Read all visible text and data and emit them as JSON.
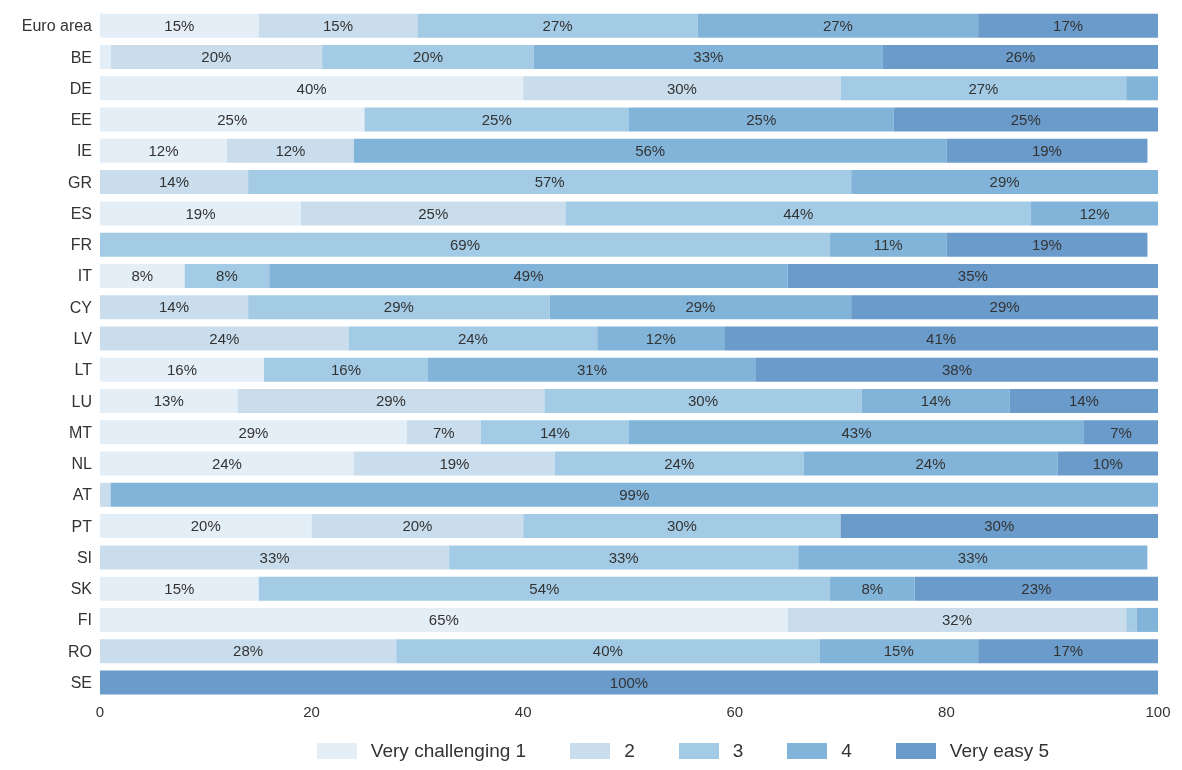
{
  "chart_data": {
    "type": "bar",
    "orientation": "horizontal",
    "stacked": true,
    "categories": [
      "Euro area",
      "BE",
      "DE",
      "EE",
      "IE",
      "GR",
      "ES",
      "FR",
      "IT",
      "CY",
      "LV",
      "LT",
      "LU",
      "MT",
      "NL",
      "AT",
      "PT",
      "SI",
      "SK",
      "FI",
      "RO",
      "SE"
    ],
    "series": [
      {
        "name": "Very challenging 1",
        "color": "#e4eef7",
        "values": [
          15,
          1,
          40,
          25,
          12,
          0,
          19,
          0,
          8,
          0,
          0,
          15.5,
          13,
          29,
          24,
          0,
          20,
          0,
          15,
          65,
          0,
          0
        ],
        "value_labels": [
          "15%",
          null,
          "40%",
          "25%",
          "12%",
          null,
          "19%",
          null,
          "8%",
          null,
          null,
          "16%",
          "13%",
          "29%",
          "24%",
          null,
          "20%",
          null,
          "15%",
          "65%",
          null,
          null
        ]
      },
      {
        "name": "2",
        "color": "#c9dded",
        "values": [
          15,
          20,
          30,
          0,
          12,
          14,
          25,
          0,
          0,
          14,
          23.5,
          0,
          29,
          7,
          19,
          1,
          20,
          33,
          0,
          32,
          28,
          0
        ],
        "value_labels": [
          "15%",
          "20%",
          "30%",
          null,
          "12%",
          "14%",
          "25%",
          null,
          null,
          "14%",
          "24%",
          null,
          "29%",
          "7%",
          "19%",
          null,
          "20%",
          "33%",
          null,
          "32%",
          "28%",
          null
        ]
      },
      {
        "name": "3",
        "color": "#a3cbe5",
        "values": [
          26.5,
          20,
          27,
          25,
          0,
          57,
          44,
          69,
          8,
          28.5,
          23.5,
          15.5,
          30,
          14,
          23.5,
          0,
          30,
          33,
          54,
          1,
          40,
          0
        ],
        "value_labels": [
          "27%",
          "20%",
          "27%",
          "25%",
          null,
          "57%",
          "44%",
          "69%",
          "8%",
          "29%",
          "24%",
          "16%",
          "30%",
          "14%",
          "24%",
          null,
          "30%",
          "33%",
          "54%",
          null,
          "40%",
          null
        ]
      },
      {
        "name": "4",
        "color": "#82b4da",
        "values": [
          26.5,
          33,
          3,
          25,
          56,
          29,
          12,
          11,
          49,
          28.5,
          12,
          31,
          14,
          43,
          24,
          99,
          0,
          33,
          8,
          2,
          15,
          0
        ],
        "value_labels": [
          "27%",
          "33%",
          null,
          "25%",
          "56%",
          "29%",
          "12%",
          "11%",
          "49%",
          "29%",
          "12%",
          "31%",
          "14%",
          "43%",
          "24%",
          "99%",
          null,
          "33%",
          "8%",
          null,
          "15%",
          null
        ]
      },
      {
        "name": "Very easy 5",
        "color": "#6a9bcb",
        "values": [
          17,
          26,
          0,
          25,
          19,
          0,
          0,
          19,
          35,
          29,
          41,
          38,
          14,
          7,
          9.5,
          0,
          30,
          0,
          23,
          0,
          17,
          100
        ],
        "value_labels": [
          "17%",
          "26%",
          null,
          "25%",
          "19%",
          null,
          null,
          "19%",
          "35%",
          "29%",
          "41%",
          "38%",
          "14%",
          "7%",
          "10%",
          null,
          "30%",
          null,
          "23%",
          null,
          "17%",
          "100%"
        ]
      }
    ],
    "xlim": [
      0,
      100
    ],
    "xticks": [
      0,
      20,
      40,
      60,
      80,
      100
    ],
    "grid": false,
    "legend": "bottom"
  }
}
